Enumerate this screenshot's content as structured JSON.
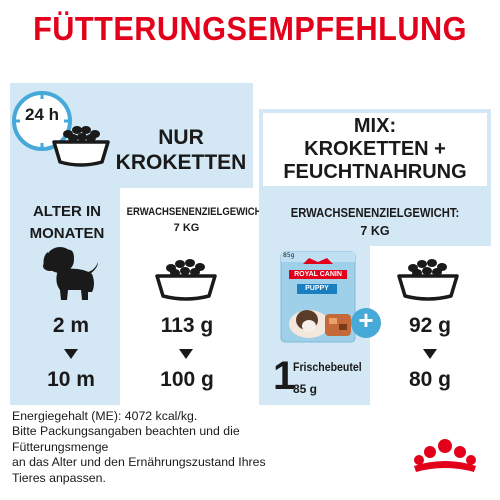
{
  "title": "FÜTTERUNGSEMPFEHLUNG",
  "clock": {
    "label": "24 h",
    "icon": "clock-icon"
  },
  "left_panel": {
    "header_line1": "NUR",
    "header_line2": "KROKETTEN",
    "age_header_line1": "ALTER IN",
    "age_header_line2": "MONATEN",
    "weight_header": "ERWACHSENENZIELGEWICHT:",
    "weight_value": "7 KG",
    "rows": [
      {
        "age": "2 m",
        "amount": "113 g"
      },
      {
        "age": "10 m",
        "amount": "100 g"
      }
    ]
  },
  "right_panel": {
    "header_line1": "MIX:",
    "header_line2": "KROKETTEN +",
    "header_line3": "FEUCHTNAHRUNG",
    "weight_header": "ERWACHSENENZIELGEWICHT:",
    "weight_value": "7 KG",
    "pouch": {
      "brand": "ROYAL CANIN",
      "product": "PUPPY",
      "weight": "85g",
      "count": "1",
      "label": "Frischebeutel",
      "sub": "85 g"
    },
    "plus": "+",
    "rows": [
      {
        "amount": "92 g"
      },
      {
        "amount": "80 g"
      }
    ]
  },
  "footer": {
    "line1": "Energiegehalt (ME): 4072 kcal/kg.",
    "line2": "Bitte Packungsangaben beachten und die",
    "line3": "Fütterungsmenge",
    "line4": "an das Alter und den Ernährungszustand Ihres",
    "line5": "Tieres anpassen."
  },
  "colors": {
    "brand_red": "#e2001a",
    "panel_blue": "#d3e7f5",
    "accent_blue": "#46a9d8"
  },
  "logo": {
    "name": "royal-canin-crown-logo"
  }
}
